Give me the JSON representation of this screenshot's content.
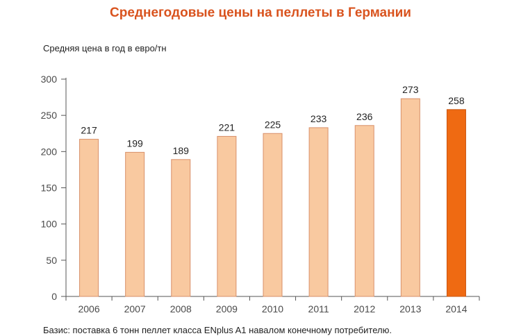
{
  "chart_data": {
    "type": "bar",
    "title": "Среднегодовые цены на пеллеты в Германии",
    "ylabel": "Средняя цена в год в евро/тн",
    "xlabel": "",
    "categories": [
      "2006",
      "2007",
      "2008",
      "2009",
      "2010",
      "2011",
      "2012",
      "2013",
      "2014"
    ],
    "values": [
      217,
      199,
      189,
      221,
      225,
      233,
      236,
      273,
      258
    ],
    "value_labels": [
      "217",
      "199",
      "189",
      "221",
      "225",
      "233",
      "236",
      "273",
      "258"
    ],
    "yticks": [
      0,
      50,
      100,
      150,
      200,
      250,
      300
    ],
    "ylim": [
      0,
      300
    ],
    "grid": false,
    "colors": {
      "bar": "#f9c9a0",
      "bar_border": "#d8906a",
      "highlight": "#ef6a12",
      "highlight_border": "#c95510",
      "axis": "#555555",
      "title": "#d9531e"
    },
    "highlight_category": "2014"
  },
  "footnote": "Базис: поставка 6 тонн пеллет класса ENplus A1 навалом  конечному потребителю."
}
